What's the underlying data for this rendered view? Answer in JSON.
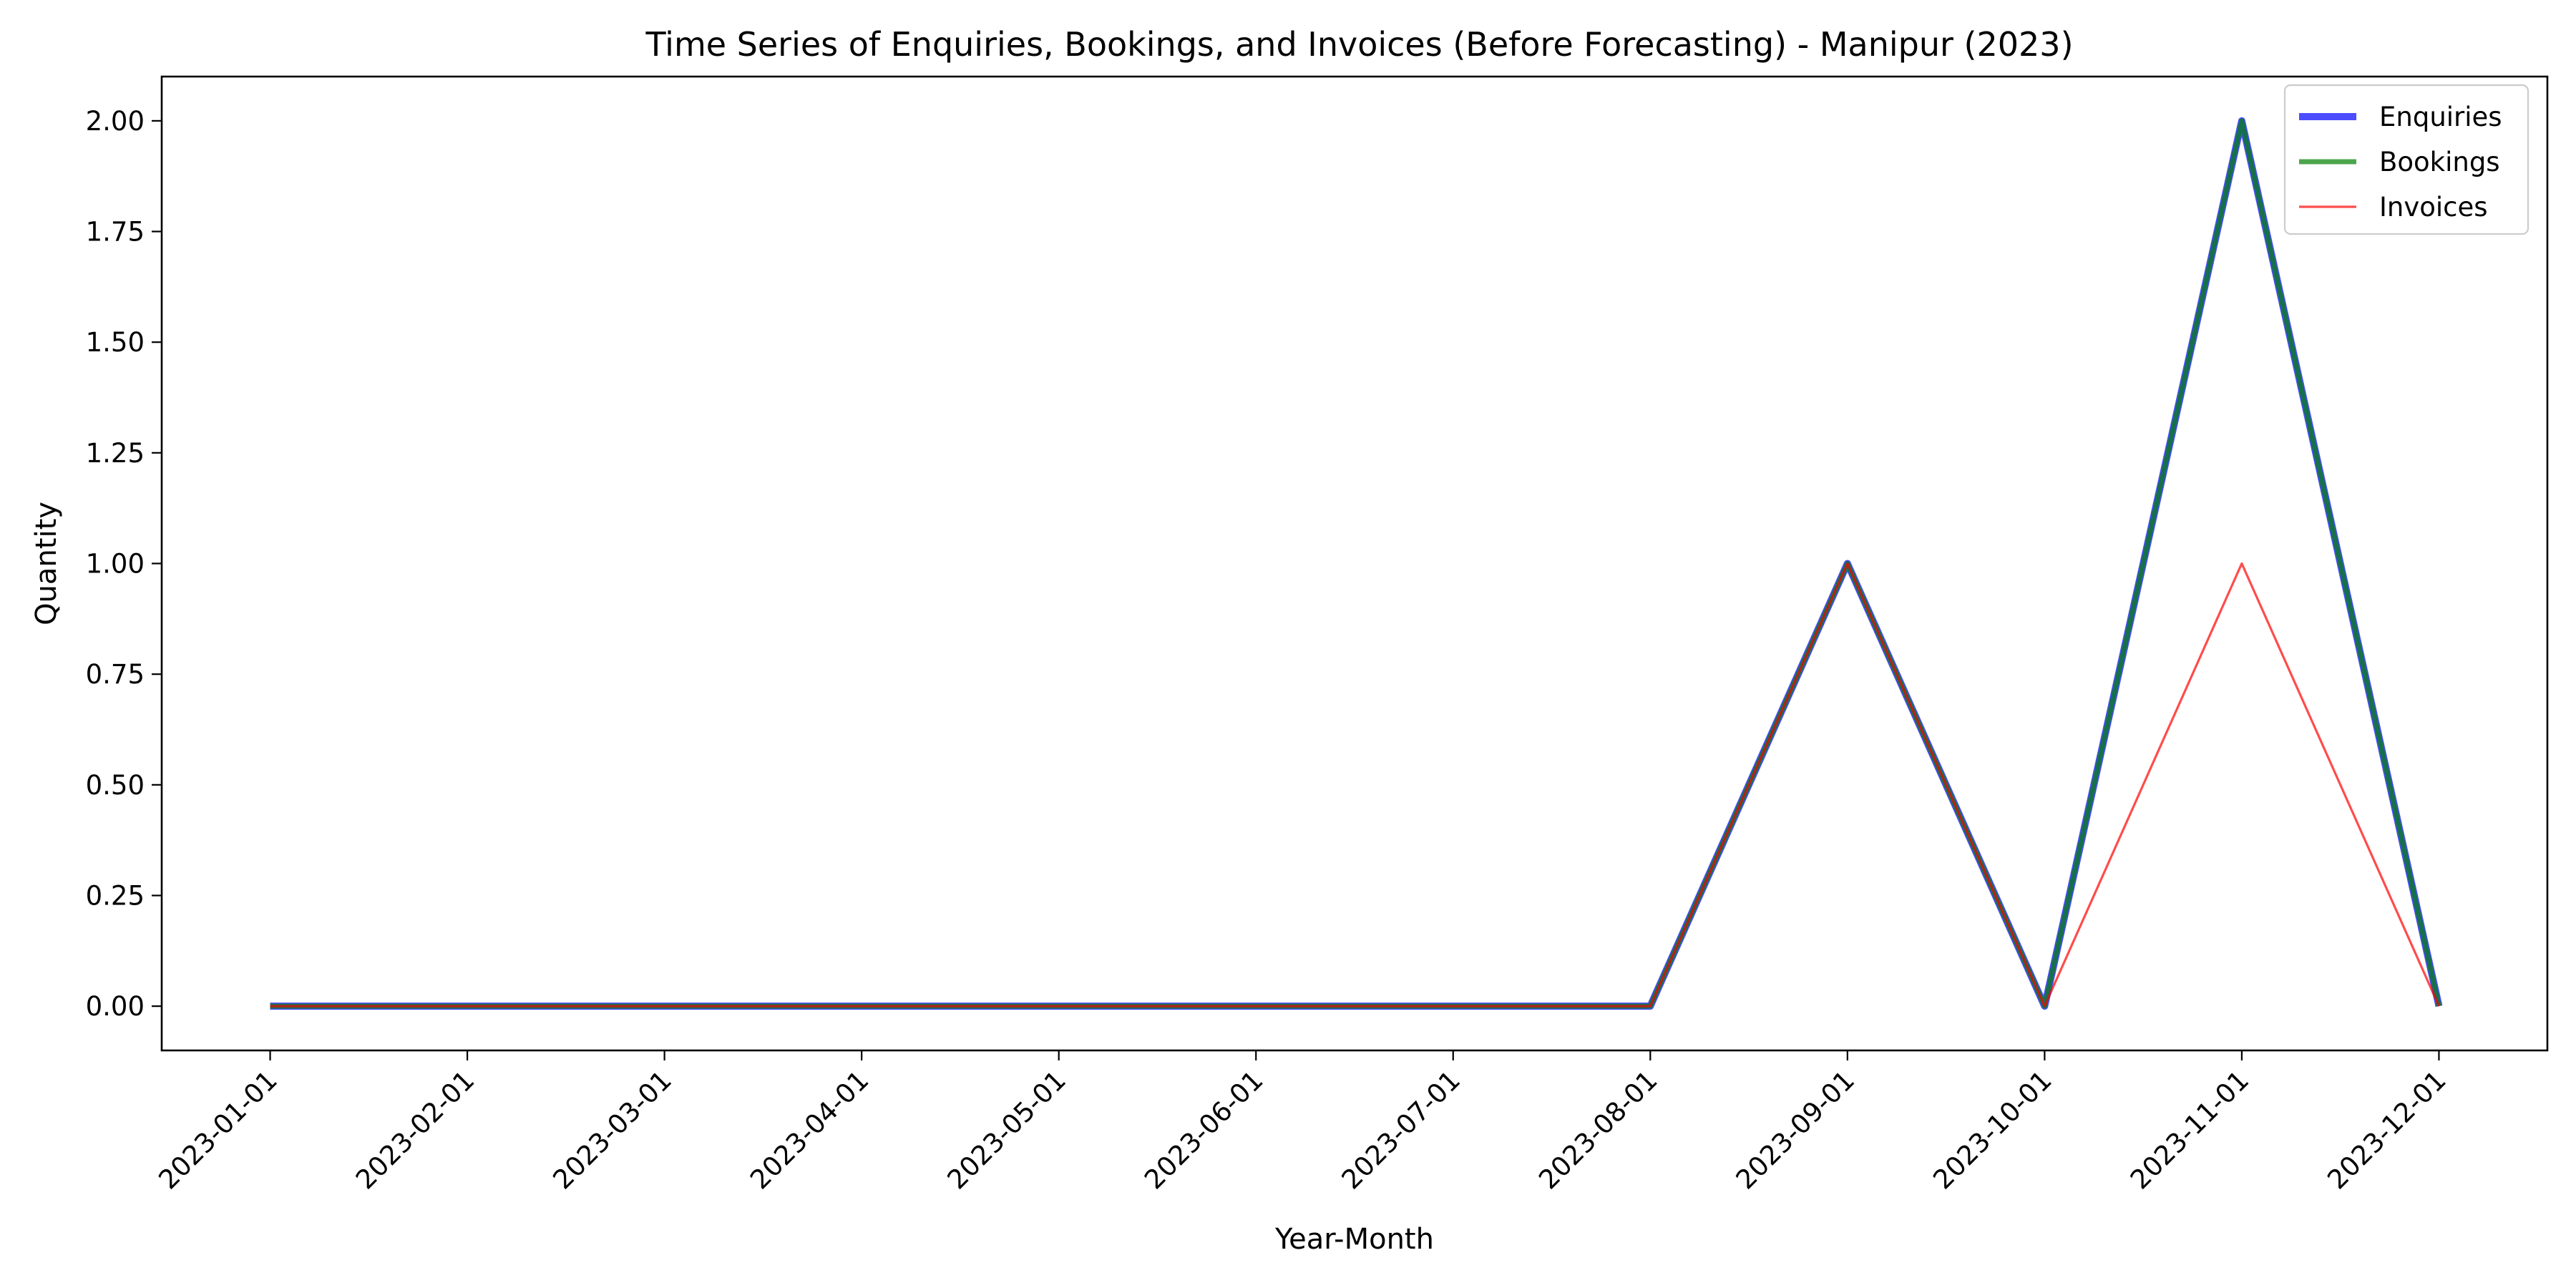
{
  "chart_data": {
    "type": "line",
    "title": "Time Series of Enquiries, Bookings, and Invoices (Before Forecasting) - Manipur (2023)",
    "xlabel": "Year-Month",
    "ylabel": "Quantity",
    "x": [
      "2023-01-01",
      "2023-02-01",
      "2023-03-01",
      "2023-04-01",
      "2023-05-01",
      "2023-06-01",
      "2023-07-01",
      "2023-08-01",
      "2023-09-01",
      "2023-10-01",
      "2023-11-01",
      "2023-12-01"
    ],
    "ylim": [
      -0.1,
      2.1
    ],
    "yticks": [
      0.0,
      0.25,
      0.5,
      0.75,
      1.0,
      1.25,
      1.5,
      1.75,
      2.0
    ],
    "grid": false,
    "legend_position": "top-right",
    "series": [
      {
        "name": "Enquiries",
        "color": "#0000ff",
        "values": [
          0,
          0,
          0,
          0,
          0,
          0,
          0,
          0,
          1,
          0,
          2,
          0
        ]
      },
      {
        "name": "Bookings",
        "color": "#008000",
        "values": [
          0,
          0,
          0,
          0,
          0,
          0,
          0,
          0,
          1,
          0,
          2,
          0
        ]
      },
      {
        "name": "Invoices",
        "color": "#ff0000",
        "values": [
          0,
          0,
          0,
          0,
          0,
          0,
          0,
          0,
          1,
          0,
          1,
          0
        ]
      }
    ]
  }
}
